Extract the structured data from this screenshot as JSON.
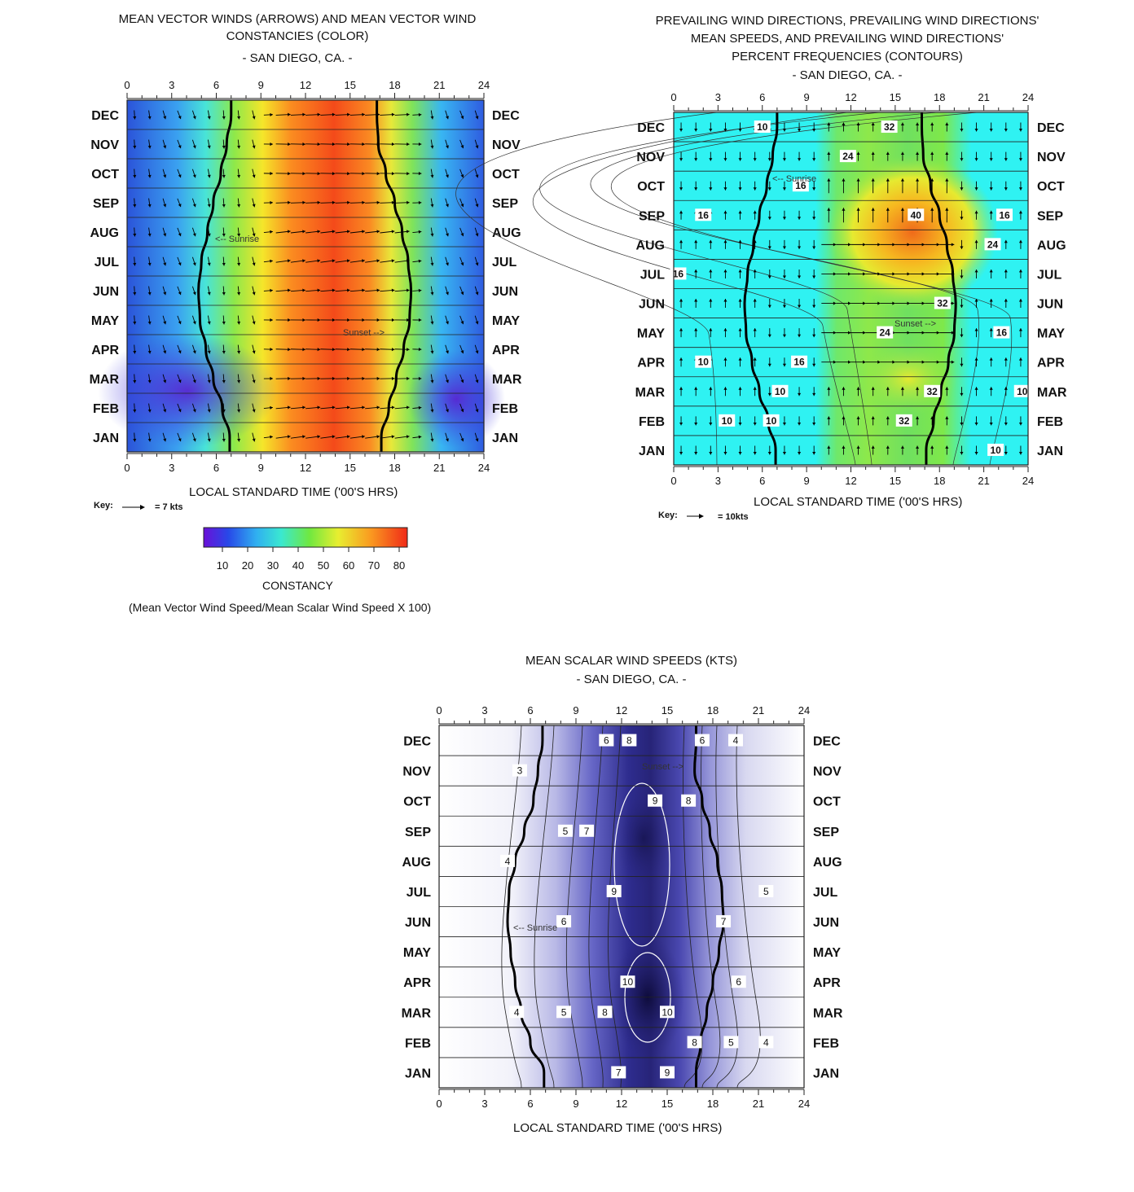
{
  "charts_meta": {
    "hour_ticks": [
      "0",
      "3",
      "6",
      "9",
      "12",
      "15",
      "18",
      "21",
      "24"
    ],
    "months_top_to_bottom": [
      "DEC",
      "NOV",
      "OCT",
      "SEP",
      "AUG",
      "JUL",
      "JUN",
      "MAY",
      "APR",
      "MAR",
      "FEB",
      "JAN"
    ],
    "xlabel": "LOCAL STANDARD TIME ('00'S HRS)"
  },
  "panel1": {
    "title_line1": "MEAN VECTOR WINDS (ARROWS) AND MEAN VECTOR WIND",
    "title_line2": "CONSTANCIES (COLOR)",
    "subtitle": "- SAN DIEGO, CA. -",
    "sunrise_label": "<-- Sunrise",
    "sunset_label": "Sunset -->",
    "key_label": "Key:",
    "key_value": "= 7 kts",
    "colorbar_ticks": [
      "10",
      "20",
      "30",
      "40",
      "50",
      "60",
      "70",
      "80"
    ],
    "colorbar_title": "CONSTANCY",
    "colorbar_note": "(Mean Vector Wind Speed/Mean Scalar Wind Speed X 100)"
  },
  "panel2": {
    "title_line1": "PREVAILING WIND DIRECTIONS, PREVAILING WIND DIRECTIONS'",
    "title_line2": "MEAN SPEEDS, AND PREVAILING WIND DIRECTIONS'",
    "title_line3": "PERCENT FREQUENCIES (CONTOURS)",
    "subtitle": "- SAN DIEGO, CA. -",
    "sunrise_label": "<-- Sunrise",
    "sunset_label": "Sunset -->",
    "key_label": "Key:",
    "key_value": "= 10kts"
  },
  "panel3": {
    "title_line1": "MEAN SCALAR WIND SPEEDS (KTS)",
    "subtitle": "- SAN DIEGO, CA. -",
    "sunrise_label": "<-- Sunrise",
    "sunset_label": "Sunset -->"
  },
  "chart_data": [
    {
      "type": "heatmap",
      "title": "MEAN VECTOR WINDS (ARROWS) AND MEAN VECTOR WIND CONSTANCIES (COLOR) - SAN DIEGO, CA. -",
      "xlabel": "LOCAL STANDARD TIME ('00'S HRS)",
      "x_range": [
        0,
        24
      ],
      "rows": [
        "DEC",
        "NOV",
        "OCT",
        "SEP",
        "AUG",
        "JUL",
        "JUN",
        "MAY",
        "APR",
        "MAR",
        "FEB",
        "JAN"
      ],
      "colorbar": {
        "label": "CONSTANCY",
        "ticks": [
          10,
          20,
          30,
          40,
          50,
          60,
          70,
          80
        ]
      },
      "key": "= 7 kts",
      "sunrise_hour_by_month": [
        7.0,
        6.7,
        6.3,
        5.8,
        5.4,
        5.0,
        4.8,
        4.9,
        5.3,
        5.8,
        6.4,
        6.9
      ],
      "sunset_hour_by_month": [
        16.8,
        16.9,
        17.4,
        18.0,
        18.5,
        18.9,
        19.1,
        19.0,
        18.6,
        18.1,
        17.6,
        17.1
      ]
    },
    {
      "type": "heatmap",
      "title": "PREVAILING WIND DIRECTIONS, PREVAILING WIND DIRECTIONS' MEAN SPEEDS, AND PREVAILING WIND DIRECTIONS' PERCENT FREQUENCIES (CONTOURS) - SAN DIEGO, CA. -",
      "xlabel": "LOCAL STANDARD TIME ('00'S HRS)",
      "x_range": [
        0,
        24
      ],
      "rows": [
        "DEC",
        "NOV",
        "OCT",
        "SEP",
        "AUG",
        "JUL",
        "JUN",
        "MAY",
        "APR",
        "MAR",
        "FEB",
        "JAN"
      ],
      "contour_labels": [
        {
          "v": "32",
          "h": 14.6,
          "m": "DEC"
        },
        {
          "v": "10",
          "h": 6.0,
          "m": "DEC"
        },
        {
          "v": "24",
          "h": 11.8,
          "m": "NOV"
        },
        {
          "v": "16",
          "h": 2.0,
          "m": "SEP"
        },
        {
          "v": "16",
          "h": 8.6,
          "m": "OCT"
        },
        {
          "v": "40",
          "h": 16.4,
          "m": "SEP"
        },
        {
          "v": "16",
          "h": 22.4,
          "m": "SEP"
        },
        {
          "v": "24",
          "h": 21.6,
          "m": "AUG"
        },
        {
          "v": "16",
          "h": 0.3,
          "m": "JUL"
        },
        {
          "v": "32",
          "h": 18.2,
          "m": "JUN"
        },
        {
          "v": "24",
          "h": 14.3,
          "m": "MAY"
        },
        {
          "v": "16",
          "h": 22.2,
          "m": "MAY"
        },
        {
          "v": "10",
          "h": 2.0,
          "m": "APR"
        },
        {
          "v": "16",
          "h": 8.5,
          "m": "APR"
        },
        {
          "v": "10",
          "h": 7.2,
          "m": "MAR"
        },
        {
          "v": "32",
          "h": 17.5,
          "m": "MAR"
        },
        {
          "v": "10",
          "h": 23.6,
          "m": "MAR"
        },
        {
          "v": "10",
          "h": 3.6,
          "m": "FEB"
        },
        {
          "v": "10",
          "h": 6.6,
          "m": "FEB"
        },
        {
          "v": "32",
          "h": 15.6,
          "m": "FEB"
        },
        {
          "v": "10",
          "h": 21.8,
          "m": "JAN"
        }
      ],
      "key": "= 10kts",
      "sunrise_hour_by_month": [
        7.0,
        6.7,
        6.3,
        5.8,
        5.4,
        5.0,
        4.8,
        4.9,
        5.3,
        5.8,
        6.4,
        6.9
      ],
      "sunset_hour_by_month": [
        16.8,
        16.9,
        17.4,
        18.0,
        18.5,
        18.9,
        19.1,
        19.0,
        18.6,
        18.1,
        17.6,
        17.1
      ]
    },
    {
      "type": "heatmap",
      "title": "MEAN SCALAR WIND SPEEDS (KTS) - SAN DIEGO, CA. -",
      "xlabel": "LOCAL STANDARD TIME ('00'S HRS)",
      "x_range": [
        0,
        24
      ],
      "rows": [
        "DEC",
        "NOV",
        "OCT",
        "SEP",
        "AUG",
        "JUL",
        "JUN",
        "MAY",
        "APR",
        "MAR",
        "FEB",
        "JAN"
      ],
      "contour_labels": [
        {
          "v": "6",
          "h": 11.0,
          "m": "DEC"
        },
        {
          "v": "8",
          "h": 12.5,
          "m": "DEC"
        },
        {
          "v": "6",
          "h": 17.3,
          "m": "DEC"
        },
        {
          "v": "4",
          "h": 19.5,
          "m": "DEC"
        },
        {
          "v": "3",
          "h": 5.3,
          "m": "NOV"
        },
        {
          "v": "9",
          "h": 14.2,
          "m": "OCT"
        },
        {
          "v": "8",
          "h": 16.4,
          "m": "OCT"
        },
        {
          "v": "5",
          "h": 8.3,
          "m": "SEP"
        },
        {
          "v": "7",
          "h": 9.7,
          "m": "SEP"
        },
        {
          "v": "4",
          "h": 4.5,
          "m": "AUG"
        },
        {
          "v": "9",
          "h": 11.5,
          "m": "JUL"
        },
        {
          "v": "5",
          "h": 21.5,
          "m": "JUL"
        },
        {
          "v": "6",
          "h": 8.2,
          "m": "JUN"
        },
        {
          "v": "7",
          "h": 18.7,
          "m": "JUN"
        },
        {
          "v": "10",
          "h": 12.4,
          "m": "APR"
        },
        {
          "v": "6",
          "h": 19.7,
          "m": "APR"
        },
        {
          "v": "4",
          "h": 5.1,
          "m": "MAR"
        },
        {
          "v": "5",
          "h": 8.2,
          "m": "MAR"
        },
        {
          "v": "8",
          "h": 10.9,
          "m": "MAR"
        },
        {
          "v": "10",
          "h": 15.0,
          "m": "MAR"
        },
        {
          "v": "8",
          "h": 16.8,
          "m": "FEB"
        },
        {
          "v": "5",
          "h": 19.2,
          "m": "FEB"
        },
        {
          "v": "4",
          "h": 21.5,
          "m": "FEB"
        },
        {
          "v": "9",
          "h": 15.0,
          "m": "JAN"
        },
        {
          "v": "7",
          "h": 11.8,
          "m": "JAN"
        }
      ],
      "sunrise_hour_by_month": [
        6.8,
        6.5,
        6.2,
        5.6,
        5.0,
        4.6,
        4.5,
        4.7,
        5.0,
        5.4,
        6.0,
        6.9
      ],
      "sunset_hour_by_month": [
        16.9,
        16.8,
        17.3,
        17.8,
        18.3,
        18.6,
        18.7,
        18.4,
        18.0,
        17.6,
        17.2,
        16.9
      ]
    }
  ]
}
